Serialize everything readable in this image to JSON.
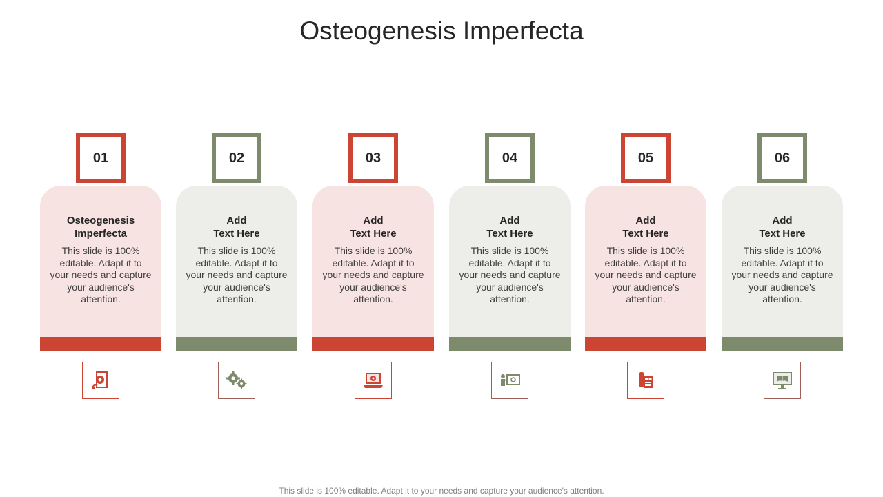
{
  "title": "Osteogenesis Imperfecta",
  "footer": "This slide is 100% editable. Adapt it to your needs and capture your audience's attention.",
  "colors": {
    "red": "#cc4433",
    "green": "#7d8a6b",
    "pink_card": "#f7e3e1",
    "grey_card": "#edeeea"
  },
  "items": [
    {
      "number": "01",
      "heading": "Osteogenesis\nImperfecta",
      "body": "This slide is 100% editable. Adapt it to your needs and capture your audience's attention.",
      "icon": "gear-document-icon"
    },
    {
      "number": "02",
      "heading": "Add\nText Here",
      "body": "This slide is 100% editable. Adapt it to your needs and capture your audience's attention.",
      "icon": "gears-icon"
    },
    {
      "number": "03",
      "heading": "Add\nText Here",
      "body": "This slide is 100% editable. Adapt it to your needs and capture your audience's attention.",
      "icon": "laptop-gear-icon"
    },
    {
      "number": "04",
      "heading": "Add\nText Here",
      "body": "This slide is 100% editable. Adapt it to your needs and capture your audience's attention.",
      "icon": "presenter-screen-icon"
    },
    {
      "number": "05",
      "heading": "Add\nText Here",
      "body": "This slide is 100% editable. Adapt it to your needs and capture your audience's attention.",
      "icon": "phone-document-icon"
    },
    {
      "number": "06",
      "heading": "Add\nText Here",
      "body": "This slide is 100% editable. Adapt it to your needs and capture your audience's attention.",
      "icon": "monitor-book-icon"
    }
  ]
}
